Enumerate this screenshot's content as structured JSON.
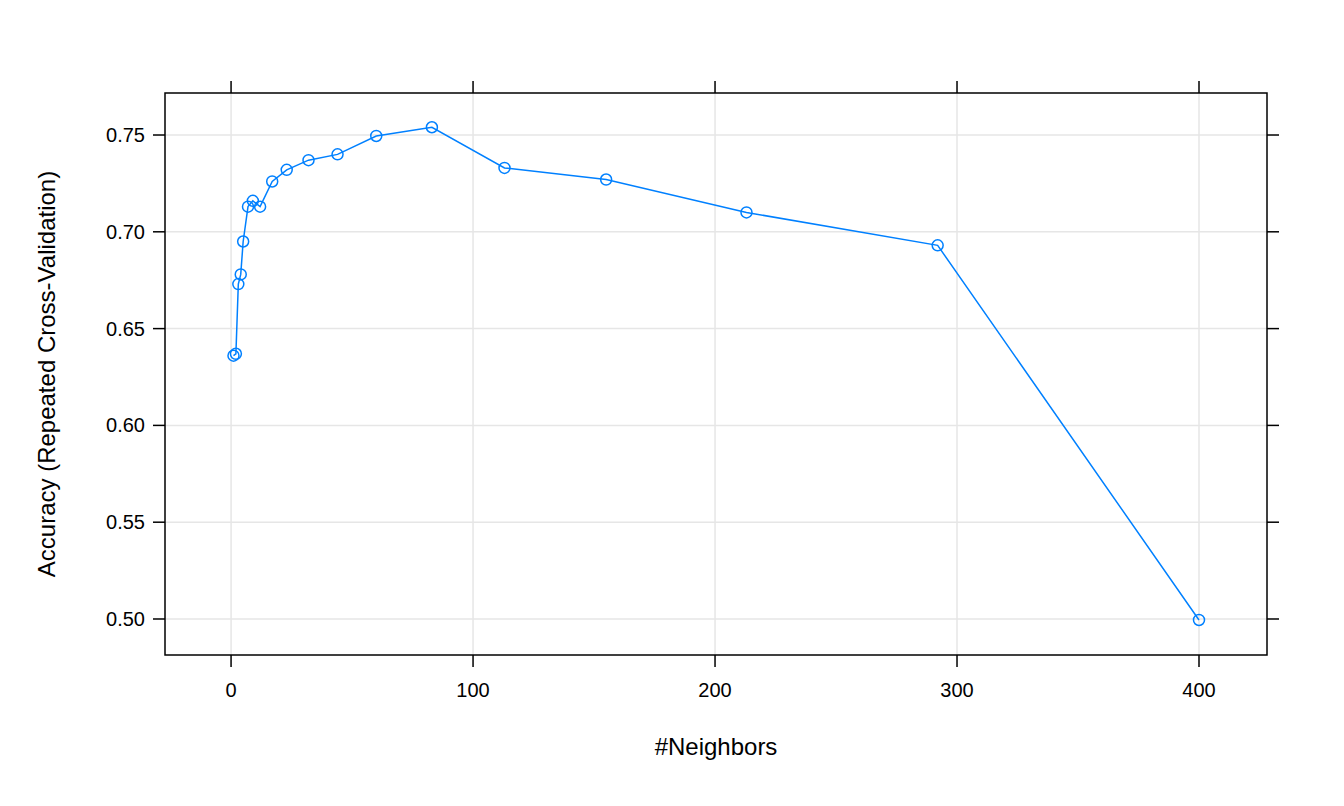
{
  "chart_data": {
    "type": "line",
    "x_label": "#Neighbors",
    "y_label": "Accuracy (Repeated Cross-Validation)",
    "x": [
      1,
      2,
      3,
      4,
      5,
      7,
      9,
      12,
      17,
      23,
      32,
      44,
      60,
      83,
      113,
      155,
      213,
      292,
      400
    ],
    "values": [
      0.636,
      0.637,
      0.673,
      0.678,
      0.695,
      0.713,
      0.716,
      0.713,
      0.726,
      0.732,
      0.737,
      0.74,
      0.7495,
      0.754,
      0.733,
      0.727,
      0.71,
      0.693,
      0.4995
    ],
    "color": "#0080ff",
    "marker": "circle",
    "line_style": "solid",
    "xlim": [
      -27.3,
      428.1
    ],
    "ylim": [
      0.4814,
      0.7717
    ],
    "xticks": [
      0,
      100,
      200,
      300,
      400
    ],
    "yticks": [
      {
        "value": 0.5,
        "label": "0.50"
      },
      {
        "value": 0.55,
        "label": "0.55"
      },
      {
        "value": 0.6,
        "label": "0.60"
      },
      {
        "value": 0.65,
        "label": "0.65"
      },
      {
        "value": 0.7,
        "label": "0.70"
      },
      {
        "value": 0.75,
        "label": "0.75"
      }
    ],
    "grid": true
  }
}
